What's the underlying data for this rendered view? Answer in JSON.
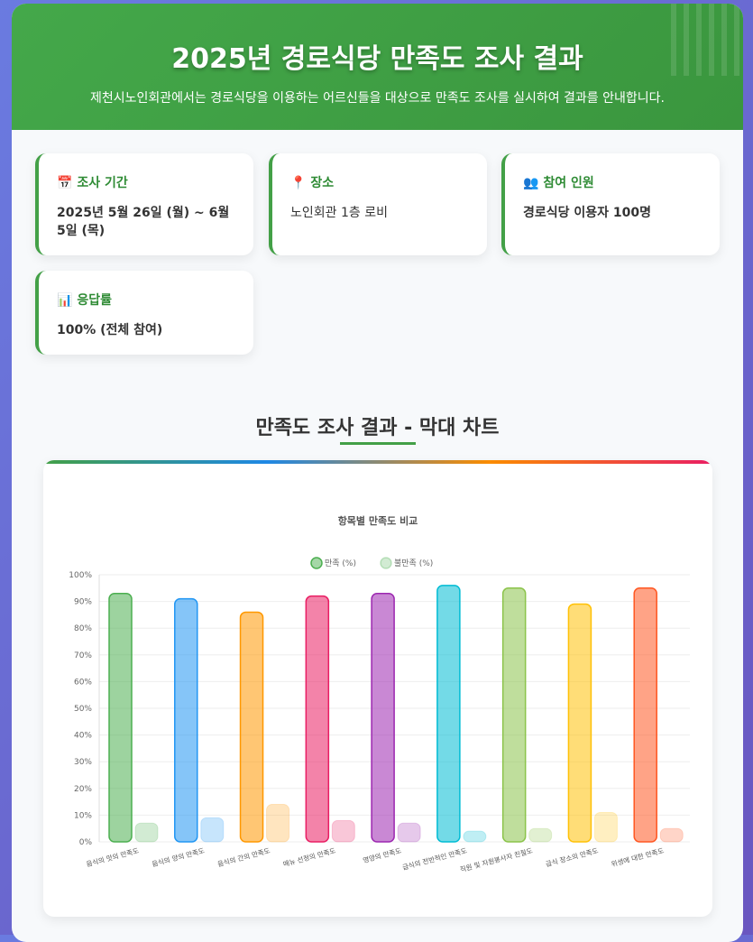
{
  "header": {
    "title": "2025년 경로식당 만족도 조사 결과",
    "subtitle": "제천시노인회관에서는 경로식당을 이용하는 어르신들을 대상으로 만족도 조사를 실시하여 결과를 안내합니다."
  },
  "cards": [
    {
      "icon": "📅",
      "title": "조사 기간",
      "value": "2025년 5월 26일 (월) ~ 6월 5일 (목)"
    },
    {
      "icon": "📍",
      "title": "장소",
      "value": "노인회관 1층 로비"
    },
    {
      "icon": "👥",
      "title": "참여 인원",
      "value": "경로식당 이용자 100명"
    },
    {
      "icon": "📊",
      "title": "응답률",
      "value": "100% (전체 참여)"
    }
  ],
  "section_title": "만족도 조사 결과 - 막대 차트",
  "chart_data": {
    "type": "bar",
    "title": "항목별 만족도 비교",
    "categories": [
      "음식의 맛의 만족도",
      "음식의 양의 만족도",
      "음식의 간의 만족도",
      "메뉴 선정의 만족도",
      "영양의 만족도",
      "급식의 전반적인 만족도",
      "직원 및 자원봉사자 친절도",
      "급식 장소의 만족도",
      "위생에 대한 만족도"
    ],
    "series": [
      {
        "name": "만족 (%)",
        "values": [
          93,
          91,
          86,
          92,
          93,
          96,
          95,
          89,
          95
        ]
      },
      {
        "name": "불만족 (%)",
        "values": [
          7,
          9,
          14,
          8,
          7,
          4,
          5,
          11,
          5
        ]
      }
    ],
    "colors": [
      "#4caf50",
      "#2196f3",
      "#ff9800",
      "#e91e63",
      "#9c27b0",
      "#00bcd4",
      "#8bc34a",
      "#ffc107",
      "#ff5722"
    ],
    "ylim": [
      0,
      100
    ],
    "yticks": [
      "0%",
      "10%",
      "20%",
      "30%",
      "40%",
      "50%",
      "60%",
      "70%",
      "80%",
      "90%",
      "100%"
    ],
    "legend": "top",
    "grid": true
  }
}
